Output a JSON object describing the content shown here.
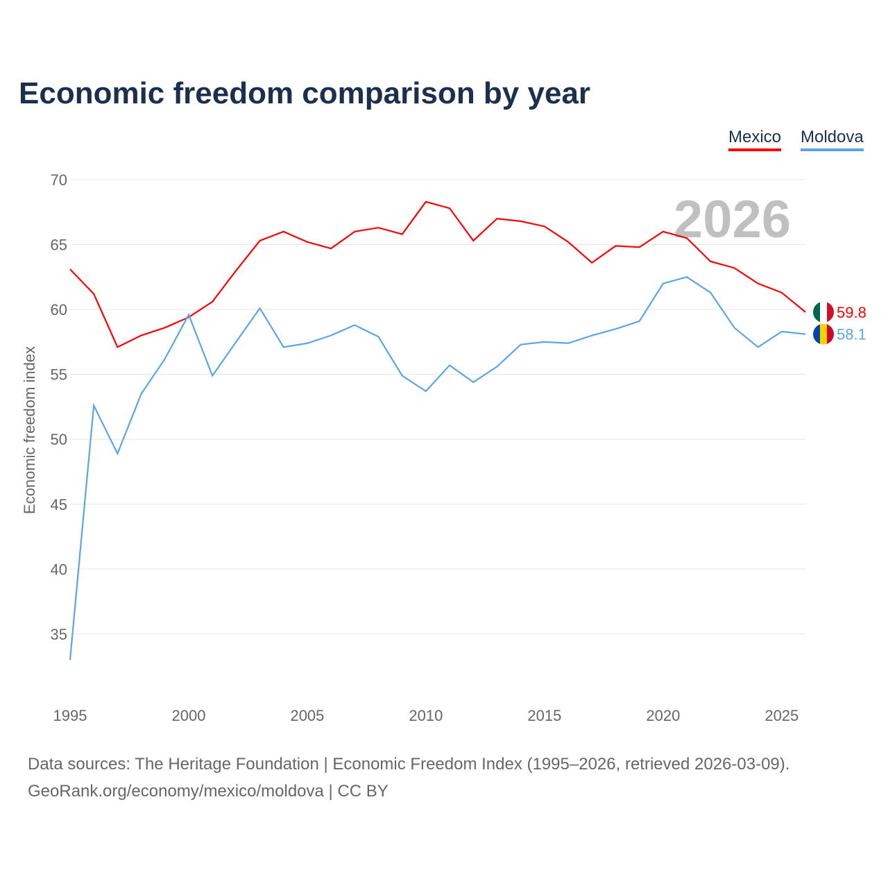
{
  "title": "Economic freedom comparison by year",
  "footer": {
    "line1": "Data sources: The Heritage Foundation | Economic Freedom Index (1995–2026, retrieved 2026-03-09).",
    "line2": "GeoRank.org/economy/mexico/moldova | CC BY"
  },
  "chart_data": {
    "type": "line",
    "title": "Economic freedom comparison by year",
    "ylabel": "Economic freedom index",
    "xlabel": "",
    "year_watermark": "2026",
    "x": [
      1995,
      1996,
      1997,
      1998,
      1999,
      2000,
      2001,
      2002,
      2003,
      2004,
      2005,
      2006,
      2007,
      2008,
      2009,
      2010,
      2011,
      2012,
      2013,
      2014,
      2015,
      2016,
      2017,
      2018,
      2019,
      2020,
      2021,
      2022,
      2023,
      2024,
      2025,
      2026
    ],
    "xticks": [
      1995,
      2000,
      2005,
      2010,
      2015,
      2020,
      2025
    ],
    "yticks": [
      35,
      40,
      45,
      50,
      55,
      60,
      65,
      70
    ],
    "ylim": [
      31,
      70
    ],
    "grid": true,
    "legend_position": "top-right",
    "series": [
      {
        "name": "Mexico",
        "color": "#ff0000",
        "end_label": "59.8",
        "flag": "mexico-flag",
        "values": [
          63.1,
          61.2,
          57.1,
          58.0,
          58.6,
          59.4,
          60.6,
          63.0,
          65.3,
          66.0,
          65.2,
          64.7,
          66.0,
          66.3,
          65.8,
          68.3,
          67.8,
          65.3,
          67.0,
          66.8,
          66.4,
          65.2,
          63.6,
          64.9,
          64.8,
          66.0,
          65.5,
          63.7,
          63.2,
          62.0,
          61.3,
          59.8
        ]
      },
      {
        "name": "Moldova",
        "color": "#5ba4e8",
        "end_label": "58.1",
        "flag": "moldova-flag",
        "values": [
          33.0,
          52.6,
          48.9,
          53.5,
          56.2,
          59.6,
          54.9,
          57.5,
          60.1,
          57.1,
          57.4,
          58.0,
          58.8,
          57.9,
          54.9,
          53.7,
          55.7,
          54.4,
          55.6,
          57.3,
          57.5,
          57.4,
          58.0,
          58.5,
          59.1,
          62.0,
          62.5,
          61.3,
          58.6,
          57.1,
          58.3,
          58.1
        ]
      }
    ]
  }
}
